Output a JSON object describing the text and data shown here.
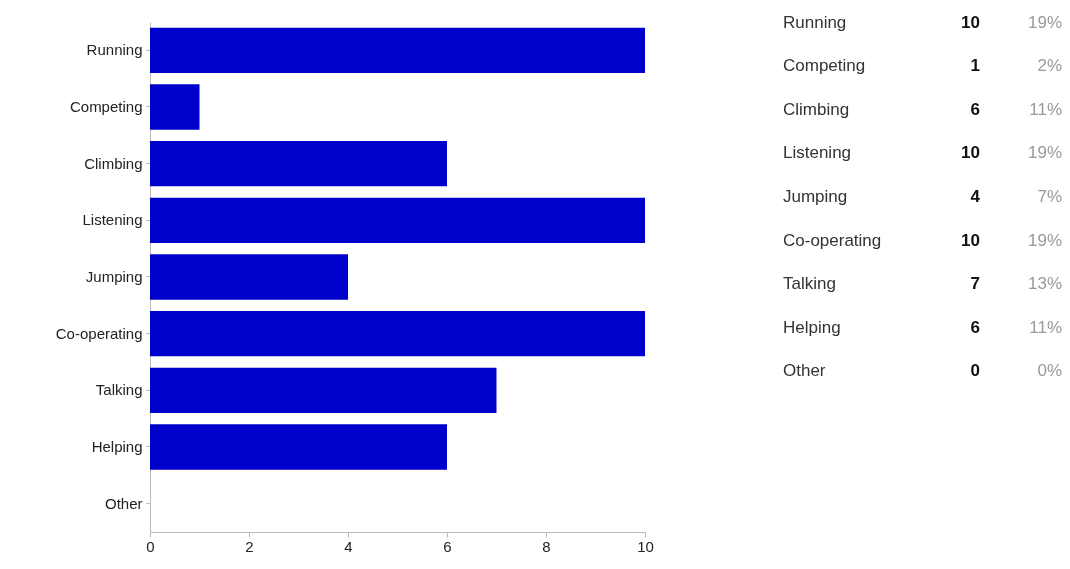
{
  "chart_data": [
    {
      "type": "bar",
      "orientation": "horizontal",
      "categories": [
        "Running",
        "Competing",
        "Climbing",
        "Listening",
        "Jumping",
        "Co-operating",
        "Talking",
        "Helping",
        "Other"
      ],
      "values": [
        10,
        1,
        6,
        10,
        4,
        10,
        7,
        6,
        0
      ],
      "color": "#0000cc",
      "xlim": [
        0,
        10
      ],
      "xticks": [
        0,
        2,
        4,
        6,
        8,
        10
      ],
      "grid": false
    },
    {
      "type": "other",
      "categories": [
        "Running",
        "Competing",
        "Climbing",
        "Listening",
        "Jumping",
        "Co-operating",
        "Talking",
        "Helping",
        "Other"
      ],
      "values": [
        10,
        1,
        6,
        10,
        4,
        10,
        7,
        6,
        0
      ],
      "data_labels": true,
      "annotations": [
        "19%",
        "2%",
        "11%",
        "19%",
        "7%",
        "19%",
        "13%",
        "11%",
        "0%"
      ]
    }
  ]
}
